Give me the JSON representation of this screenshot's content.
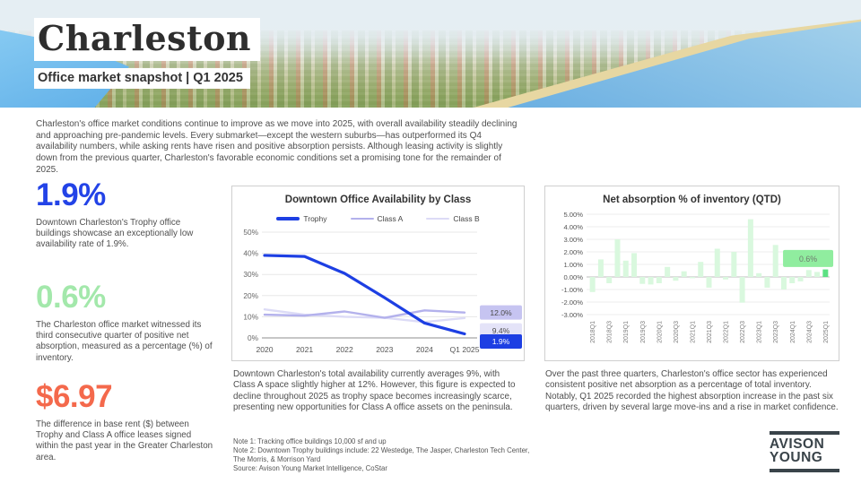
{
  "header": {
    "title": "Charleston",
    "subtitle": "Office market snapshot | Q1 2025"
  },
  "intro": "Charleston's office market conditions continue to improve as we move into 2025, with overall availability steadily declining and approaching pre-pandemic levels. Every submarket—except the western suburbs—has outperformed its Q4 availability numbers, while asking rents have risen and positive absorption persists. Although leasing activity is slightly down from the previous quarter, Charleston's favorable economic conditions set a promising tone for the remainder of 2025.",
  "stats": [
    {
      "value": "1.9%",
      "color": "#2343e7",
      "description": "Downtown Charleston's Trophy office buildings showcase an exceptionally low availability rate of 1.9%."
    },
    {
      "value": "0.6%",
      "color": "#a3e8ab",
      "description": "The Charleston office market witnessed its third consecutive quarter of positive net absorption, measured as a percentage (%) of inventory."
    },
    {
      "value": "$6.97",
      "color": "#f4694c",
      "description": "The difference in base rent ($) between Trophy and Class A office leases signed within the past year in the Greater Charleston area."
    }
  ],
  "chart_data": [
    {
      "type": "line",
      "title": "Downtown Office Availability by Class",
      "categories": [
        "2020",
        "2021",
        "2022",
        "2023",
        "2024",
        "Q1 2025"
      ],
      "series": [
        {
          "name": "Trophy",
          "color": "#1d3fe3",
          "width": 3.2,
          "values": [
            39,
            38.5,
            30.5,
            19,
            7,
            1.9
          ],
          "end_label": "1.9%",
          "label_bg": "#1d3fe3",
          "label_fg": "#ffffff"
        },
        {
          "name": "Class A",
          "color": "#b3b1ec",
          "width": 2.4,
          "values": [
            11,
            10.5,
            12.5,
            9.5,
            13,
            12
          ],
          "end_label": "12.0%",
          "label_bg": "#c6c4f1",
          "label_fg": "#4a4a4a"
        },
        {
          "name": "Class B",
          "color": "#dcdbf6",
          "width": 2.4,
          "values": [
            13.5,
            11,
            10,
            9.5,
            7.5,
            9.4
          ],
          "end_label": "9.4%",
          "label_bg": "#e4e3f8",
          "label_fg": "#4a4a4a"
        }
      ],
      "ylim": [
        0,
        50
      ],
      "yticks": [
        0,
        10,
        20,
        30,
        40,
        50
      ],
      "ytick_suffix": "%",
      "grid": true,
      "legend_position": "top"
    },
    {
      "type": "bar",
      "title": "Net absorption % of inventory (QTD)",
      "x": [
        "2018Q1",
        "2018Q2",
        "2018Q3",
        "2018Q4",
        "2019Q1",
        "2019Q2",
        "2019Q3",
        "2019Q4",
        "2020Q1",
        "2020Q2",
        "2020Q3",
        "2020Q4",
        "2021Q1",
        "2021Q2",
        "2021Q3",
        "2021Q4",
        "2022Q1",
        "2022Q2",
        "2022Q3",
        "2022Q4",
        "2023Q1",
        "2023Q2",
        "2023Q3",
        "2023Q4",
        "2024Q1",
        "2024Q2",
        "2024Q3",
        "2024Q4",
        "2025Q1"
      ],
      "values": [
        -1.2,
        1.4,
        -0.5,
        3.0,
        1.3,
        1.9,
        -0.55,
        -0.6,
        -0.5,
        0.8,
        -0.3,
        0.45,
        -0.1,
        1.2,
        -0.85,
        2.25,
        -0.2,
        2.0,
        -2.05,
        4.6,
        0.3,
        -0.85,
        2.55,
        -1.0,
        -0.5,
        -0.35,
        0.55,
        0.4,
        0.6
      ],
      "xtick_every": 2,
      "ylim": [
        -3,
        5
      ],
      "yticks": [
        -3,
        -2,
        -1,
        0,
        1,
        2,
        3,
        4,
        5
      ],
      "ytick_format": "2dp_percent",
      "grid": true,
      "bar_color": "#d9f8de",
      "highlight_index": 28,
      "highlight_color": "#5ce083",
      "annotation": {
        "text": "0.6%",
        "bg": "#90ed9f",
        "fg": "#6f7a6f"
      }
    }
  ],
  "paragraphs": {
    "availability": "Downtown Charleston's total availability currently averages 9%, with Class A space slightly higher at 12%. However, this figure is expected to decline throughout 2025 as trophy space becomes increasingly scarce, presenting new opportunities for Class A office assets on the peninsula.",
    "absorption": "Over the past three quarters, Charleston's office sector has experienced consistent positive net absorption as a percentage of total inventory. Notably, Q1 2025 recorded the highest absorption increase in the past six quarters, driven by several large move-ins and a rise in market confidence."
  },
  "notes": [
    "Note 1: Tracking office buildings 10,000 sf and up",
    "Note 2: Downtown Trophy buildings include: 22 Westedge, The Jasper, Charleston Tech Center, The Morris, & Morrison Yard",
    "Source: Avison Young Market Intelligence, CoStar"
  ],
  "logo": {
    "line1": "AVISON",
    "line2": "YOUNG"
  }
}
